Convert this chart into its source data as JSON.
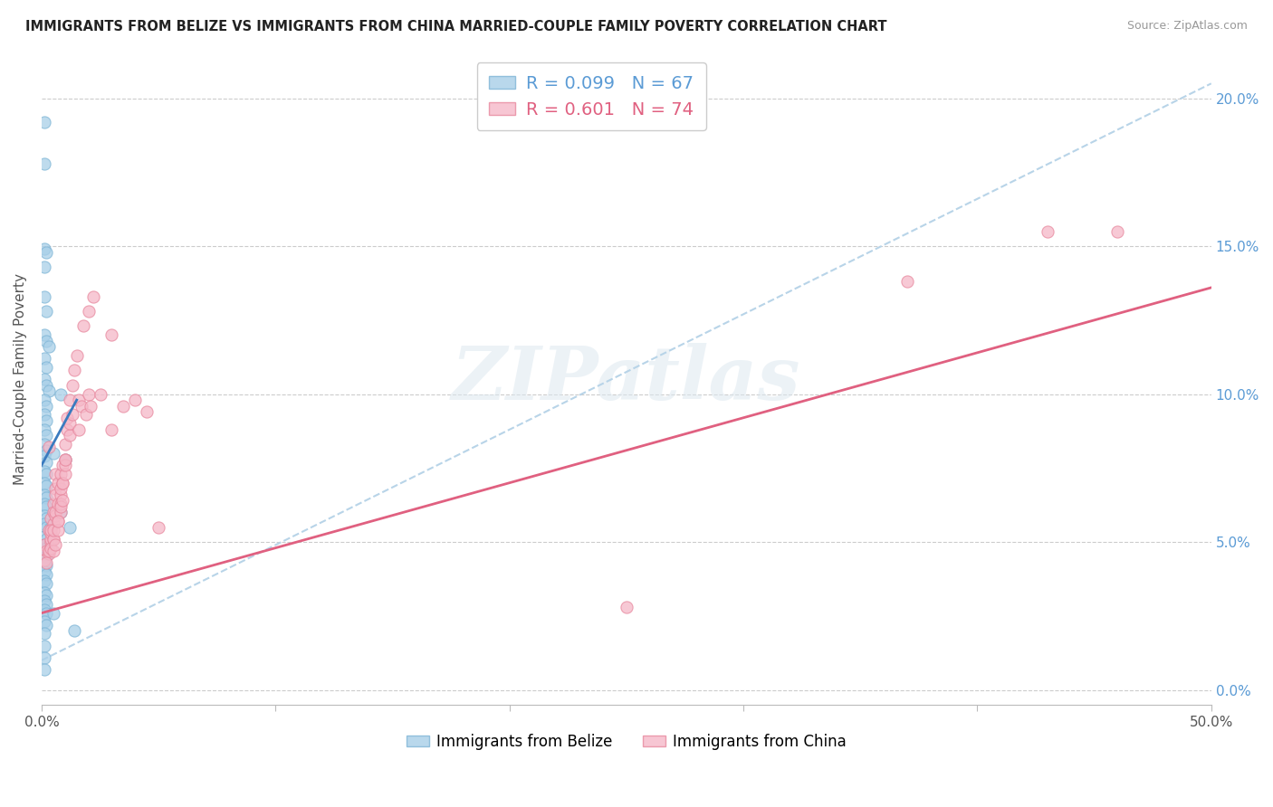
{
  "title": "IMMIGRANTS FROM BELIZE VS IMMIGRANTS FROM CHINA MARRIED-COUPLE FAMILY POVERTY CORRELATION CHART",
  "source": "Source: ZipAtlas.com",
  "ylabel": "Married-Couple Family Poverty",
  "right_yticks": [
    "20.0%",
    "15.0%",
    "10.0%",
    "5.0%",
    "0.0%"
  ],
  "right_ytick_vals": [
    0.2,
    0.15,
    0.1,
    0.05,
    0.0
  ],
  "xlim": [
    0.0,
    0.5
  ],
  "ylim": [
    -0.005,
    0.215
  ],
  "belize_color": "#a8cfe8",
  "belize_edge_color": "#7eb5d6",
  "china_color": "#f5b8c8",
  "china_edge_color": "#e8889e",
  "belize_line_color": "#3a7bbf",
  "china_line_color": "#e06080",
  "dashed_line_color": "#b8d4e8",
  "watermark_text": "ZIPatlas",
  "belize_trend_x": [
    0.0,
    0.015
  ],
  "belize_trend_y": [
    0.076,
    0.098
  ],
  "china_trend_x": [
    0.0,
    0.5
  ],
  "china_trend_y": [
    0.026,
    0.136
  ],
  "dashed_trend_x": [
    0.0,
    0.5
  ],
  "dashed_trend_y": [
    0.01,
    0.205
  ],
  "belize_scatter": [
    [
      0.001,
      0.192
    ],
    [
      0.001,
      0.178
    ],
    [
      0.001,
      0.149
    ],
    [
      0.002,
      0.148
    ],
    [
      0.001,
      0.143
    ],
    [
      0.001,
      0.133
    ],
    [
      0.002,
      0.128
    ],
    [
      0.001,
      0.12
    ],
    [
      0.002,
      0.118
    ],
    [
      0.003,
      0.116
    ],
    [
      0.001,
      0.112
    ],
    [
      0.002,
      0.109
    ],
    [
      0.001,
      0.105
    ],
    [
      0.002,
      0.103
    ],
    [
      0.003,
      0.101
    ],
    [
      0.001,
      0.098
    ],
    [
      0.002,
      0.096
    ],
    [
      0.001,
      0.093
    ],
    [
      0.002,
      0.091
    ],
    [
      0.001,
      0.088
    ],
    [
      0.002,
      0.086
    ],
    [
      0.001,
      0.083
    ],
    [
      0.002,
      0.081
    ],
    [
      0.001,
      0.079
    ],
    [
      0.002,
      0.077
    ],
    [
      0.001,
      0.074
    ],
    [
      0.002,
      0.073
    ],
    [
      0.001,
      0.07
    ],
    [
      0.002,
      0.069
    ],
    [
      0.001,
      0.066
    ],
    [
      0.002,
      0.065
    ],
    [
      0.001,
      0.063
    ],
    [
      0.002,
      0.062
    ],
    [
      0.001,
      0.059
    ],
    [
      0.002,
      0.058
    ],
    [
      0.001,
      0.056
    ],
    [
      0.002,
      0.055
    ],
    [
      0.001,
      0.052
    ],
    [
      0.002,
      0.051
    ],
    [
      0.001,
      0.049
    ],
    [
      0.002,
      0.048
    ],
    [
      0.001,
      0.046
    ],
    [
      0.002,
      0.045
    ],
    [
      0.001,
      0.043
    ],
    [
      0.002,
      0.042
    ],
    [
      0.001,
      0.04
    ],
    [
      0.002,
      0.039
    ],
    [
      0.001,
      0.037
    ],
    [
      0.002,
      0.036
    ],
    [
      0.001,
      0.033
    ],
    [
      0.002,
      0.032
    ],
    [
      0.001,
      0.03
    ],
    [
      0.002,
      0.029
    ],
    [
      0.001,
      0.027
    ],
    [
      0.002,
      0.026
    ],
    [
      0.001,
      0.023
    ],
    [
      0.002,
      0.022
    ],
    [
      0.001,
      0.019
    ],
    [
      0.001,
      0.015
    ],
    [
      0.001,
      0.011
    ],
    [
      0.001,
      0.007
    ],
    [
      0.004,
      0.055
    ],
    [
      0.005,
      0.08
    ],
    [
      0.008,
      0.1
    ],
    [
      0.01,
      0.078
    ],
    [
      0.008,
      0.06
    ],
    [
      0.012,
      0.055
    ],
    [
      0.005,
      0.026
    ],
    [
      0.014,
      0.02
    ]
  ],
  "china_scatter": [
    [
      0.001,
      0.049
    ],
    [
      0.002,
      0.047
    ],
    [
      0.001,
      0.044
    ],
    [
      0.003,
      0.082
    ],
    [
      0.004,
      0.05
    ],
    [
      0.003,
      0.046
    ],
    [
      0.002,
      0.043
    ],
    [
      0.004,
      0.058
    ],
    [
      0.003,
      0.054
    ],
    [
      0.004,
      0.051
    ],
    [
      0.003,
      0.047
    ],
    [
      0.005,
      0.056
    ],
    [
      0.004,
      0.053
    ],
    [
      0.005,
      0.051
    ],
    [
      0.004,
      0.048
    ],
    [
      0.005,
      0.063
    ],
    [
      0.005,
      0.06
    ],
    [
      0.004,
      0.054
    ],
    [
      0.005,
      0.051
    ],
    [
      0.006,
      0.073
    ],
    [
      0.006,
      0.068
    ],
    [
      0.006,
      0.059
    ],
    [
      0.005,
      0.054
    ],
    [
      0.006,
      0.066
    ],
    [
      0.006,
      0.06
    ],
    [
      0.005,
      0.047
    ],
    [
      0.007,
      0.07
    ],
    [
      0.007,
      0.063
    ],
    [
      0.007,
      0.057
    ],
    [
      0.006,
      0.049
    ],
    [
      0.008,
      0.073
    ],
    [
      0.008,
      0.066
    ],
    [
      0.008,
      0.06
    ],
    [
      0.007,
      0.054
    ],
    [
      0.008,
      0.068
    ],
    [
      0.008,
      0.063
    ],
    [
      0.007,
      0.057
    ],
    [
      0.009,
      0.076
    ],
    [
      0.009,
      0.07
    ],
    [
      0.008,
      0.062
    ],
    [
      0.01,
      0.078
    ],
    [
      0.009,
      0.07
    ],
    [
      0.009,
      0.064
    ],
    [
      0.01,
      0.083
    ],
    [
      0.01,
      0.073
    ],
    [
      0.011,
      0.088
    ],
    [
      0.01,
      0.076
    ],
    [
      0.011,
      0.092
    ],
    [
      0.01,
      0.078
    ],
    [
      0.012,
      0.098
    ],
    [
      0.012,
      0.086
    ],
    [
      0.013,
      0.103
    ],
    [
      0.012,
      0.09
    ],
    [
      0.014,
      0.108
    ],
    [
      0.013,
      0.093
    ],
    [
      0.015,
      0.113
    ],
    [
      0.016,
      0.098
    ],
    [
      0.016,
      0.088
    ],
    [
      0.018,
      0.123
    ],
    [
      0.017,
      0.096
    ],
    [
      0.02,
      0.128
    ],
    [
      0.02,
      0.1
    ],
    [
      0.019,
      0.093
    ],
    [
      0.022,
      0.133
    ],
    [
      0.021,
      0.096
    ],
    [
      0.03,
      0.12
    ],
    [
      0.04,
      0.098
    ],
    [
      0.025,
      0.1
    ],
    [
      0.03,
      0.088
    ],
    [
      0.035,
      0.096
    ],
    [
      0.045,
      0.094
    ],
    [
      0.05,
      0.055
    ],
    [
      0.25,
      0.028
    ],
    [
      0.43,
      0.155
    ],
    [
      0.46,
      0.155
    ],
    [
      0.37,
      0.138
    ]
  ]
}
